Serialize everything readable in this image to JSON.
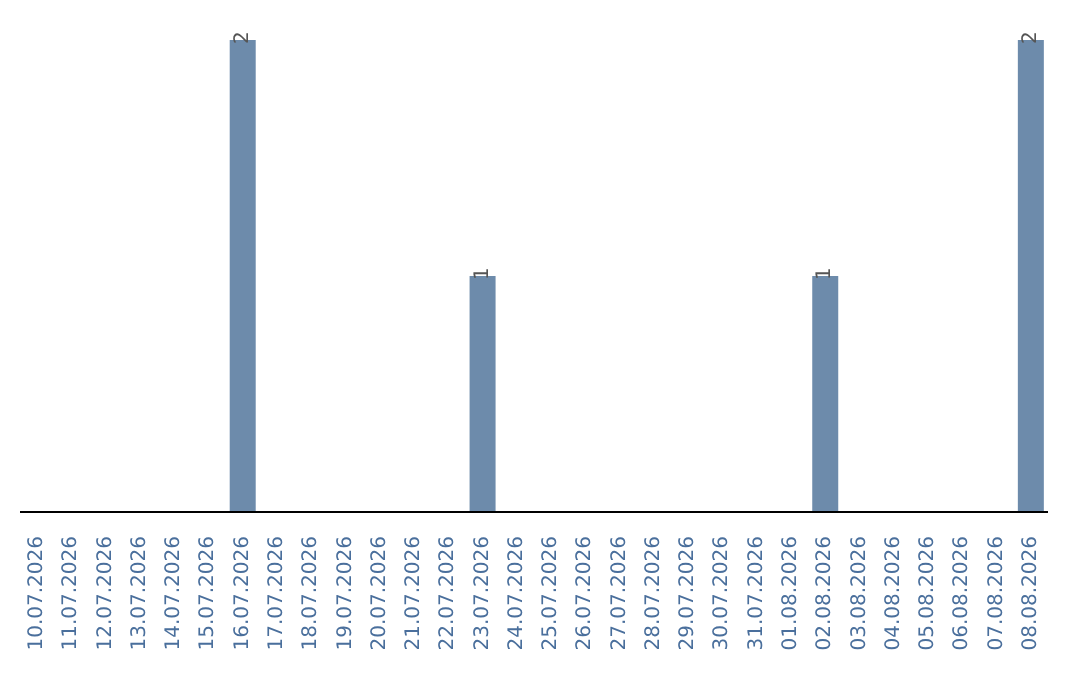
{
  "chart_data": {
    "type": "bar",
    "categories": [
      "10.07.2026",
      "11.07.2026",
      "12.07.2026",
      "13.07.2026",
      "14.07.2026",
      "15.07.2026",
      "16.07.2026",
      "17.07.2026",
      "18.07.2026",
      "19.07.2026",
      "20.07.2026",
      "21.07.2026",
      "22.07.2026",
      "23.07.2026",
      "24.07.2026",
      "25.07.2026",
      "26.07.2026",
      "27.07.2026",
      "28.07.2026",
      "29.07.2026",
      "30.07.2026",
      "31.07.2026",
      "01.08.2026",
      "02.08.2026",
      "03.08.2026",
      "04.08.2026",
      "05.08.2026",
      "06.08.2026",
      "07.08.2026",
      "08.08.2026"
    ],
    "values": [
      0,
      0,
      0,
      0,
      0,
      0,
      2,
      0,
      0,
      0,
      0,
      0,
      0,
      1,
      0,
      0,
      0,
      0,
      0,
      0,
      0,
      0,
      0,
      1,
      0,
      0,
      0,
      0,
      0,
      2
    ],
    "value_labels": [
      null,
      null,
      null,
      null,
      null,
      null,
      "2",
      null,
      null,
      null,
      null,
      null,
      null,
      "1",
      null,
      null,
      null,
      null,
      null,
      null,
      null,
      null,
      null,
      "1",
      null,
      null,
      null,
      null,
      null,
      "2"
    ],
    "color": "#6d8bab"
  }
}
